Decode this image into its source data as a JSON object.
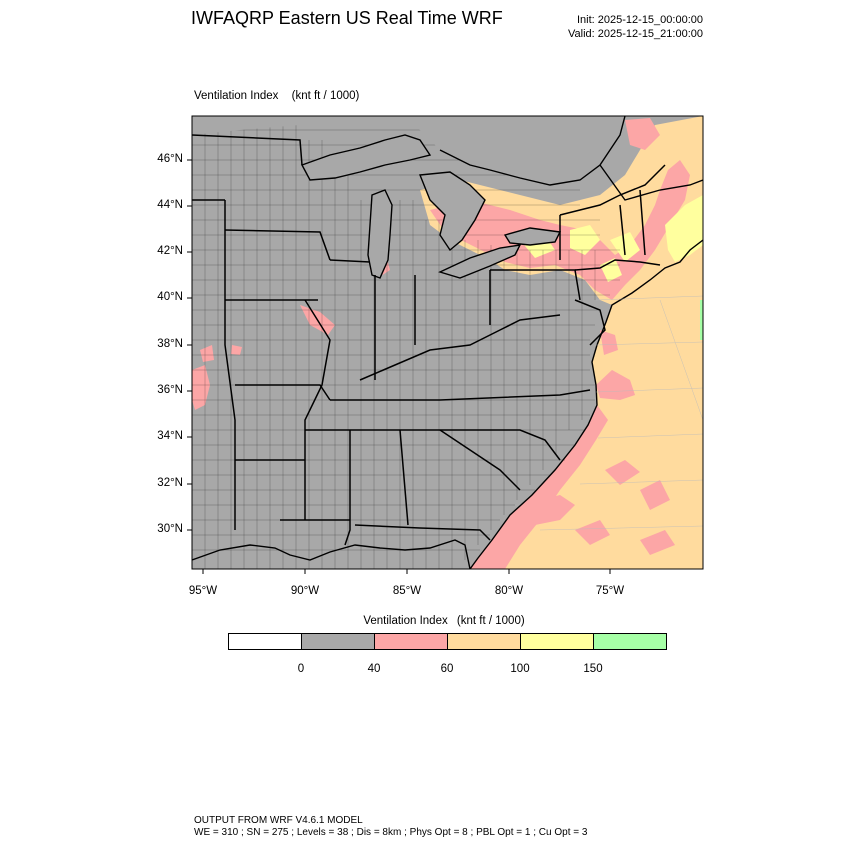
{
  "header": {
    "title": "IWFAQRP Eastern US Real Time WRF",
    "init": "Init: 2025-12-15_00:00:00",
    "valid": "Valid: 2025-12-15_21:00:00"
  },
  "field": {
    "name": "Ventilation Index",
    "units": "(knt ft / 1000)"
  },
  "map": {
    "lat_labels": [
      "46°N",
      "44°N",
      "42°N",
      "40°N",
      "38°N",
      "36°N",
      "34°N",
      "32°N",
      "30°N"
    ],
    "lon_labels": [
      "95°W",
      "90°W",
      "85°W",
      "80°W",
      "75°W"
    ],
    "colors": {
      "background": "#a8a8a8",
      "ocean": "#ffdb9e",
      "pink": "#fca6a6",
      "yellow": "#ffff9e",
      "green": "#a6ffa6",
      "border": "#000000"
    }
  },
  "colorbar": {
    "title": "Ventilation Index",
    "units": "(knt ft / 1000)",
    "colors": [
      "#ffffff",
      "#a8a8a8",
      "#fca6a6",
      "#ffdb9e",
      "#ffff9e",
      "#a6ffa6"
    ],
    "ticks": [
      "0",
      "40",
      "60",
      "100",
      "150"
    ]
  },
  "footer": {
    "line1": "OUTPUT FROM WRF V4.6.1 MODEL",
    "line2": "WE = 310 ; SN = 275 ; Levels = 38 ; Dis = 8km ; Phys Opt = 8 ; PBL Opt = 1 ; Cu Opt = 3"
  }
}
